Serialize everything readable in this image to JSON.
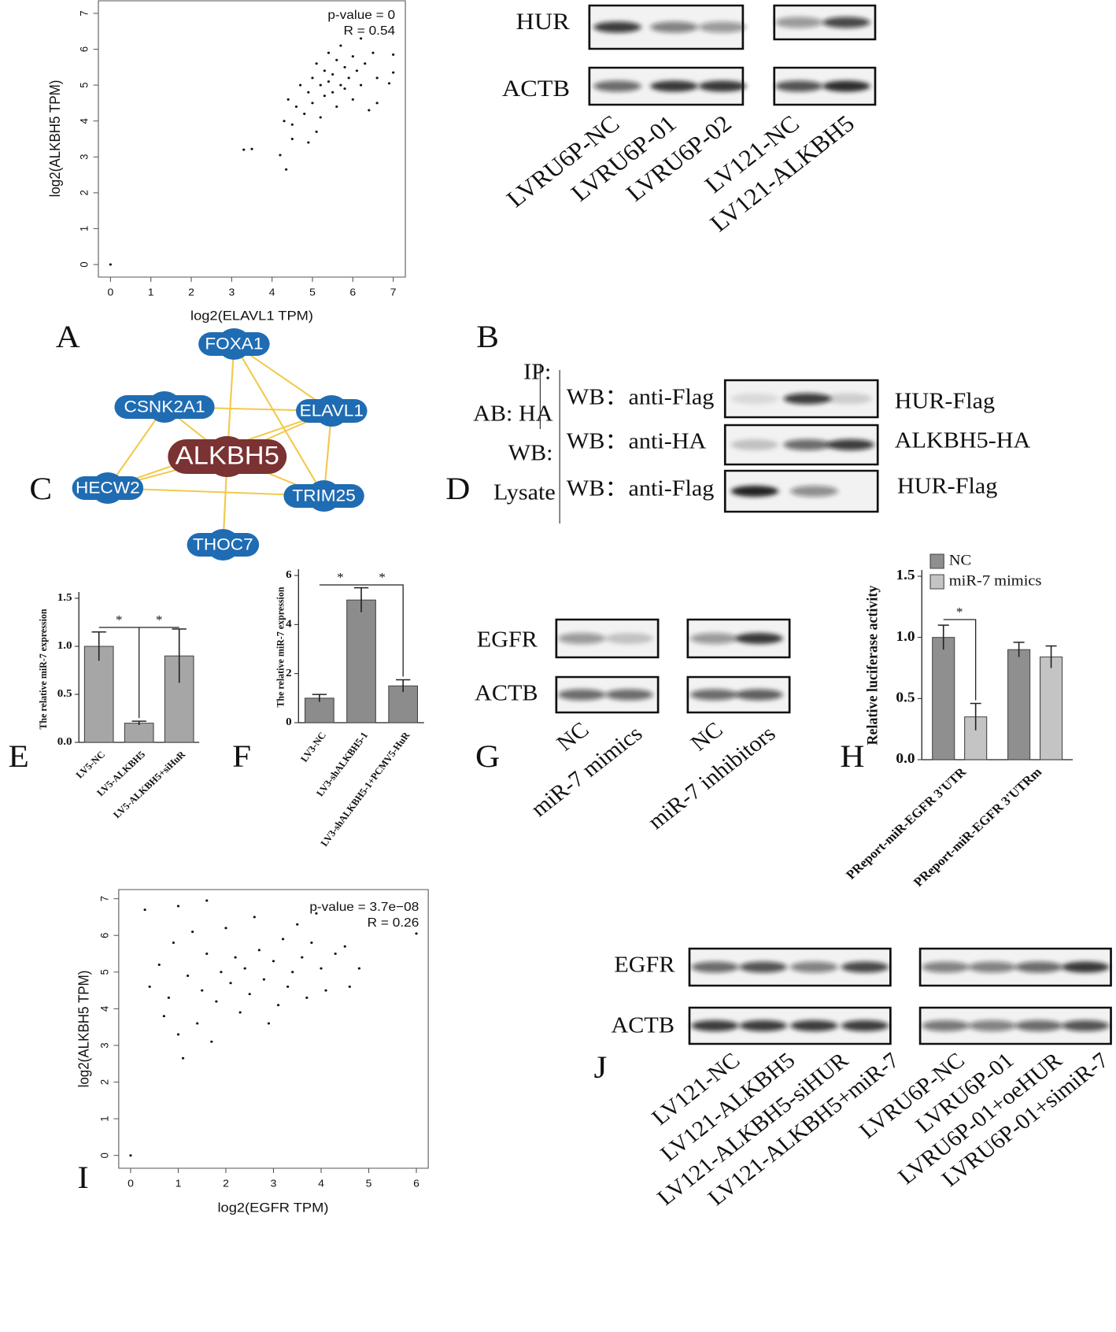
{
  "chart_data": [
    {
      "type": "scatter",
      "xlabel": "log2(ELAVL1 TPM)",
      "ylabel": "log2(ALKBH5 TPM)",
      "annotations": [
        "p-value = 0",
        "R = 0.54"
      ],
      "color": "#111111",
      "x": [
        0,
        3.3,
        3.5,
        4.2,
        4.35,
        4.3,
        4.4,
        4.5,
        4.6,
        4.7,
        4.8,
        4.9,
        5.0,
        5.0,
        5.1,
        5.1,
        5.2,
        5.2,
        5.3,
        5.3,
        5.4,
        5.4,
        5.5,
        5.5,
        5.6,
        5.6,
        5.7,
        5.7,
        5.8,
        5.8,
        5.9,
        6.0,
        6.0,
        6.1,
        6.2,
        6.2,
        6.3,
        6.4,
        6.5,
        6.6,
        6.6,
        6.9,
        7.0,
        7.0,
        4.5,
        4.9
      ],
      "values": [
        0,
        3.2,
        3.22,
        3.05,
        2.65,
        4.0,
        4.6,
        3.9,
        4.4,
        5.0,
        4.2,
        4.8,
        5.2,
        4.5,
        3.7,
        5.6,
        5.0,
        4.1,
        5.4,
        4.7,
        5.9,
        5.1,
        4.8,
        5.3,
        5.7,
        4.4,
        5.0,
        6.1,
        5.5,
        4.9,
        5.2,
        5.8,
        4.6,
        5.4,
        6.3,
        5.0,
        5.6,
        4.3,
        5.9,
        5.2,
        4.5,
        5.05,
        5.35,
        5.85,
        3.5,
        3.4
      ],
      "xlim": [
        -0.3,
        7.3
      ],
      "ylim": [
        -0.35,
        7.35
      ],
      "xticks": [
        0,
        1,
        2,
        3,
        4,
        5,
        6,
        7
      ],
      "yticks": [
        0,
        1,
        2,
        3,
        4,
        5,
        6,
        7
      ]
    },
    {
      "type": "bar",
      "ylabel": "The relative miR-7 expression",
      "color": "#a6a6a6",
      "categories": [
        "LV5-NC",
        "LV5-ALKBH5",
        "LV5-ALKBH5+siHuR"
      ],
      "values": [
        1.0,
        0.2,
        0.9
      ],
      "errors": [
        0.15,
        0.02,
        0.28
      ],
      "annotations": [
        "*",
        "*"
      ],
      "ylim": [
        0,
        1.5
      ],
      "yticks": [
        {
          "value": 0,
          "label": "0.0"
        },
        0.5,
        {
          "value": 1,
          "label": "1.0"
        },
        1.5
      ]
    },
    {
      "type": "bar",
      "ylabel": "The relative miR-7 expression",
      "color": "#8c8c8c",
      "categories": [
        "LV3-NC",
        "LV3-shALKBH5-1",
        "LV3-shALKBH5-1+PCMV5-HuR"
      ],
      "values": [
        1.0,
        5.0,
        1.5
      ],
      "errors": [
        0.15,
        0.5,
        0.25
      ],
      "annotations": [
        "*",
        "*"
      ],
      "ylim": [
        0,
        6
      ],
      "yticks": [
        0,
        2,
        4,
        6
      ]
    },
    {
      "type": "bar",
      "ylabel": "Relative  luciferase  activity",
      "categories": [
        "PReport-miR-EGFR 3'UTR",
        "PReport-miR-EGFR 3'UTRm"
      ],
      "series": [
        {
          "name": "NC",
          "color": "#8f8f8f",
          "values": [
            1.0,
            0.9
          ],
          "errors": [
            0.1,
            0.06
          ]
        },
        {
          "name": "miR-7 mimics",
          "color": "#c4c4c4",
          "values": [
            0.35,
            0.84
          ],
          "errors": [
            0.11,
            0.09
          ]
        }
      ],
      "annotations": [
        "*"
      ],
      "ylim": [
        0,
        1.5
      ],
      "yticks": [
        {
          "value": 0,
          "label": "0.0"
        },
        0.5,
        {
          "value": 1,
          "label": "1.0"
        },
        1.5
      ]
    },
    {
      "type": "scatter",
      "xlabel": "log2(EGFR TPM)",
      "ylabel": "log2(ALKBH5 TPM)",
      "annotations": [
        "p-value = 3.7e−08",
        "R = 0.26"
      ],
      "color": "#111111",
      "x": [
        0,
        1.1,
        6.0,
        0.3,
        1.0,
        1.6,
        0.4,
        0.6,
        0.7,
        0.8,
        0.9,
        1.0,
        1.2,
        1.3,
        1.4,
        1.5,
        1.6,
        1.7,
        1.8,
        1.9,
        2.0,
        2.1,
        2.2,
        2.3,
        2.4,
        2.5,
        2.6,
        2.7,
        2.8,
        2.9,
        3.0,
        3.1,
        3.2,
        3.3,
        3.4,
        3.5,
        3.6,
        3.7,
        3.8,
        3.9,
        4.0,
        4.1,
        4.3,
        4.5,
        4.6,
        4.8
      ],
      "values": [
        0,
        2.65,
        6.05,
        6.7,
        6.8,
        6.95,
        4.6,
        5.2,
        3.8,
        4.3,
        5.8,
        3.3,
        4.9,
        6.1,
        3.6,
        4.5,
        5.5,
        3.1,
        4.2,
        5.0,
        6.2,
        4.7,
        5.4,
        3.9,
        5.1,
        4.4,
        6.5,
        5.6,
        4.8,
        3.6,
        5.3,
        4.1,
        5.9,
        4.6,
        5.0,
        6.3,
        5.4,
        4.3,
        5.8,
        6.6,
        5.1,
        4.5,
        5.5,
        5.7,
        4.6,
        5.1
      ],
      "xlim": [
        -0.25,
        6.25
      ],
      "ylim": [
        -0.35,
        7.25
      ],
      "xticks": [
        0,
        1,
        2,
        3,
        4,
        5,
        6
      ],
      "yticks": [
        0,
        1,
        2,
        3,
        4,
        5,
        6,
        7
      ]
    }
  ],
  "panel_labels": [
    "A",
    "B",
    "C",
    "D",
    "E",
    "F",
    "G",
    "H",
    "I",
    "J"
  ],
  "network": {
    "nodes": [
      "FOXA1",
      "CSNK2A1",
      "ELAVL1",
      "ALKBH5",
      "HECW2",
      "TRIM25",
      "THOC7"
    ]
  },
  "blot_b": {
    "rows": [
      "HUR",
      "ACTB"
    ],
    "lanes": [
      "LVRU6P-NC",
      "LVRU6P-01",
      "LVRU6P-02",
      "LV121-NC",
      "LV121-ALKBH5"
    ]
  },
  "blot_d": {
    "left": [
      "IP:",
      "AB: HA",
      "WB:",
      "Lysate"
    ],
    "probes": [
      "WB：anti-Flag",
      "WB：anti-HA",
      "WB：anti-Flag"
    ],
    "targets": [
      "HUR-Flag",
      "ALKBH5-HA",
      "HUR-Flag"
    ]
  },
  "blot_g": {
    "rows": [
      "EGFR",
      "ACTB"
    ],
    "lanes": [
      "NC",
      "miR-7 mimics",
      "NC",
      "miR-7 inhibitors"
    ]
  },
  "blot_j": {
    "rows": [
      "EGFR",
      "ACTB"
    ],
    "lanes": [
      "LV121-NC",
      "LV121-ALKBH5",
      "LV121-ALKBH5-siHUR",
      "LV121-ALKBH5+miR-7",
      "LVRU6P-NC",
      "LVRU6P-01",
      "LVRU6P-01+oeHUR",
      "LVRU6P-01+simiR-7"
    ]
  }
}
